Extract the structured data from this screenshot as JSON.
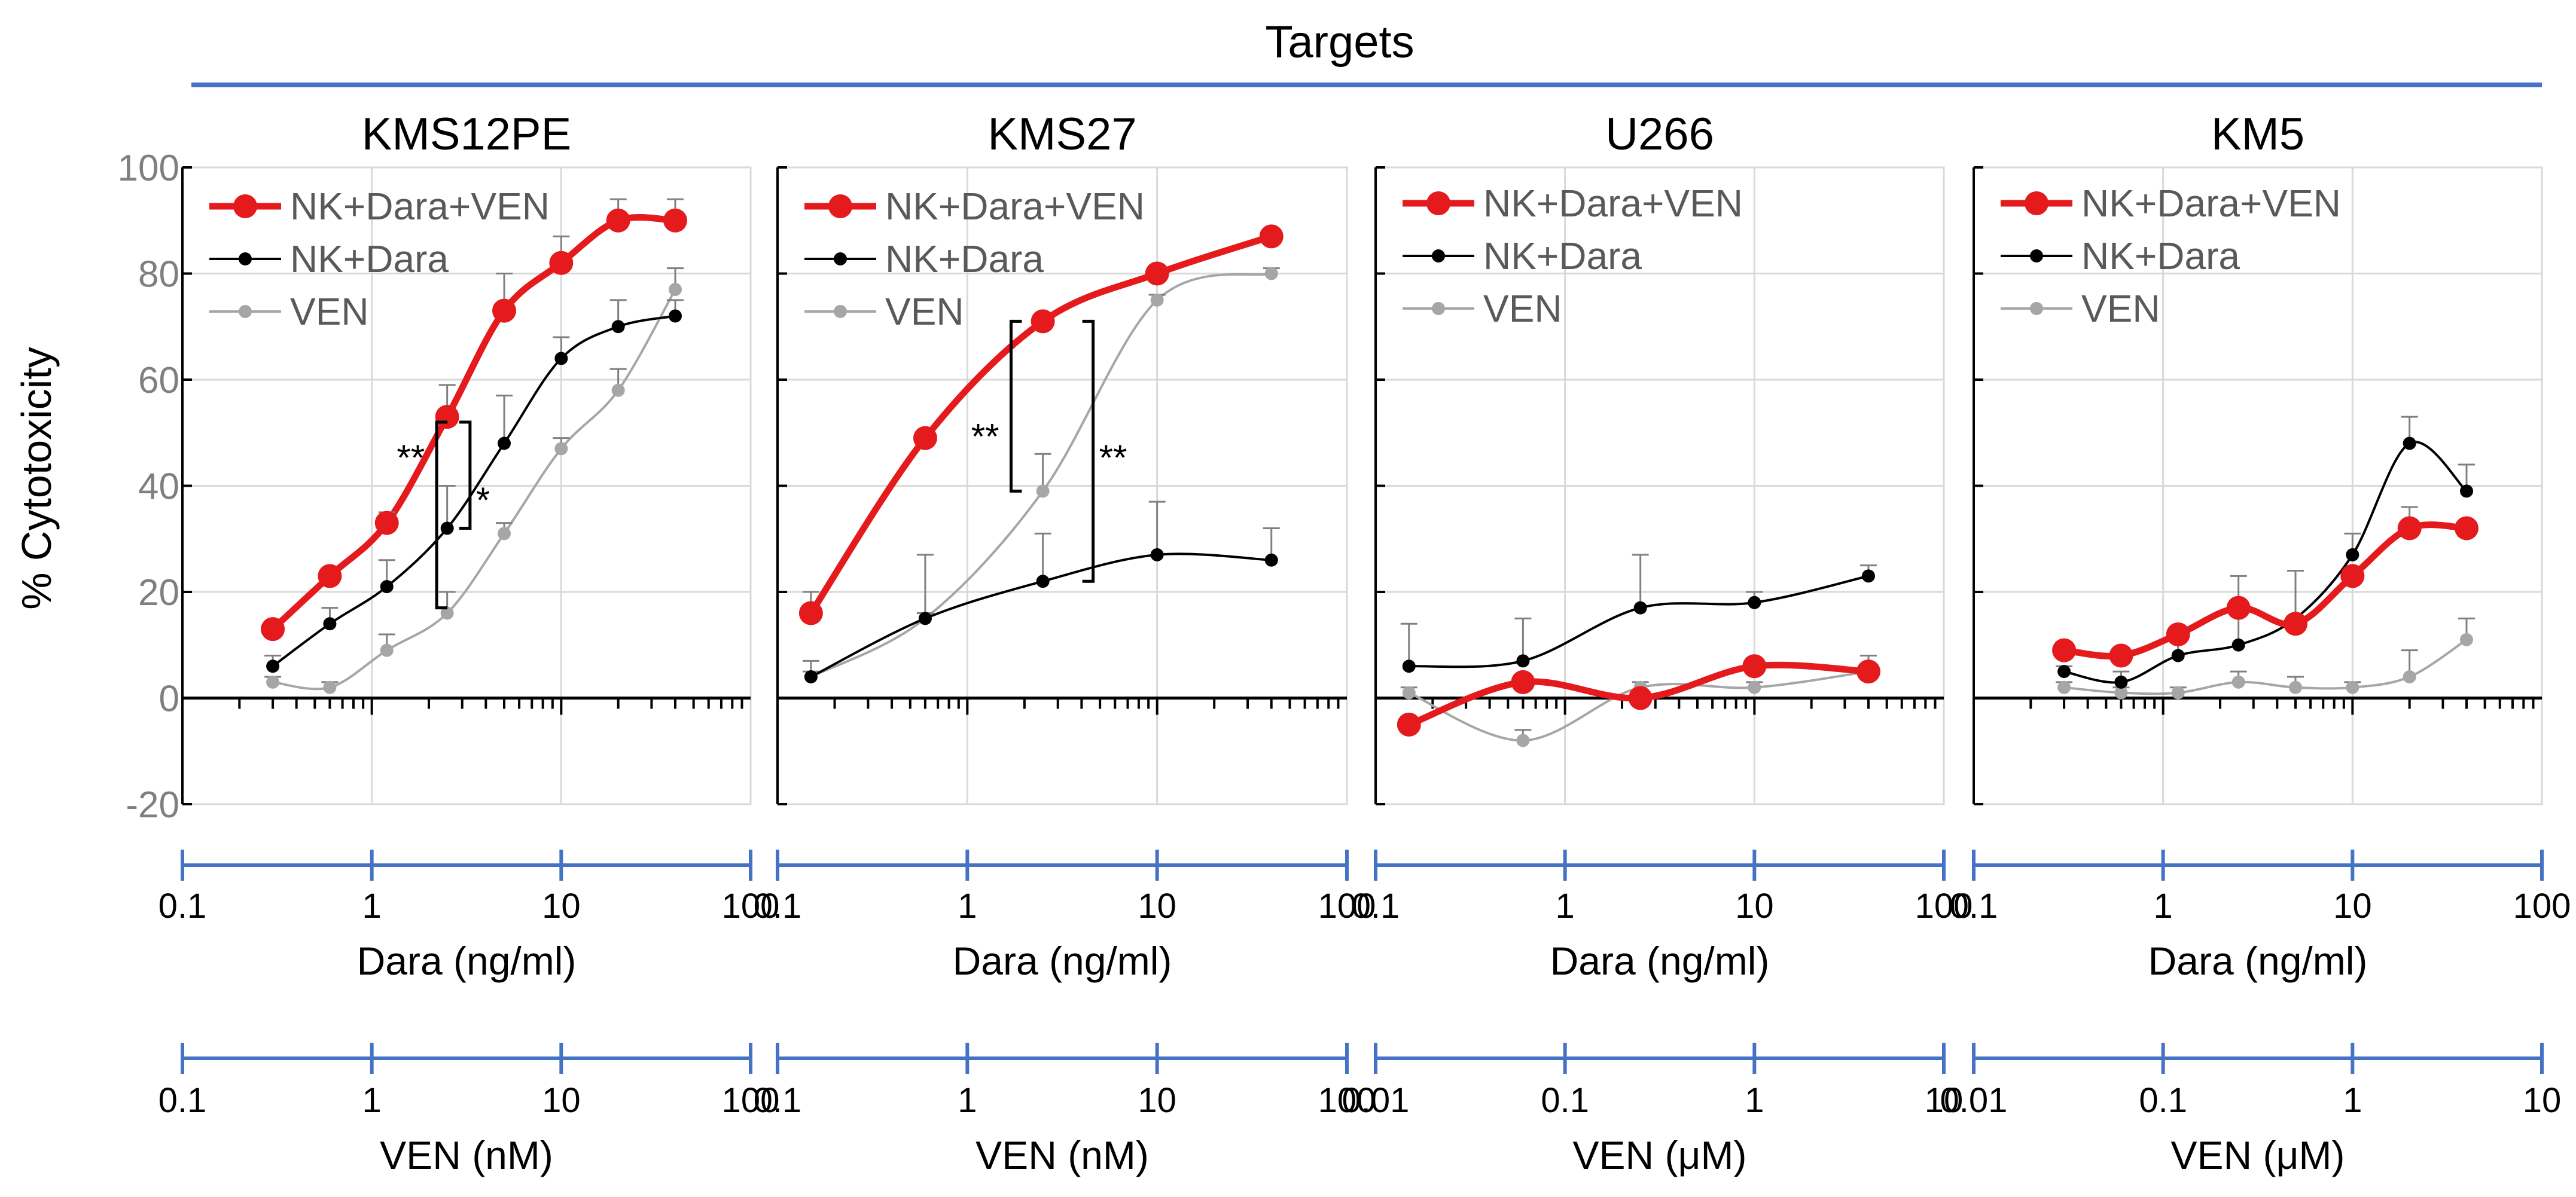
{
  "header": {
    "label": "Targets",
    "line_color": "#4472C4"
  },
  "yaxis": {
    "label": "% Cytotoxicity",
    "ticks": [
      "100",
      "80",
      "60",
      "40",
      "20",
      "0",
      "-20"
    ],
    "ylim": [
      -20,
      100
    ]
  },
  "colors": {
    "nk_dara_ven": "#E41A1C",
    "nk_dara": "#000000",
    "ven": "#A6A6A6",
    "axis_blue": "#4472C4",
    "grid": "#D9D9D9"
  },
  "chart_data": [
    {
      "type": "line",
      "title": "KMS12PE",
      "xscale": "log",
      "xlim": [
        0.1,
        100
      ],
      "ylim": [
        -20,
        100
      ],
      "grid": true,
      "legend_position": "top-left",
      "dara_axis": {
        "label": "Dara (ng/ml)",
        "ticks": [
          "0.1",
          "1",
          "10",
          "100"
        ]
      },
      "ven_axis": {
        "label": "VEN (nM)",
        "ticks": [
          "0.1",
          "1",
          "10",
          "100"
        ]
      },
      "series": [
        {
          "name": "NK+Dara+VEN",
          "points": [
            [
              0.3,
              13
            ],
            [
              0.6,
              23
            ],
            [
              1.2,
              33
            ],
            [
              2.5,
              53
            ],
            [
              5,
              73
            ],
            [
              10,
              82
            ],
            [
              20,
              90
            ],
            [
              40,
              90
            ]
          ],
          "err": [
            1,
            1,
            2,
            6,
            7,
            5,
            4,
            4
          ]
        },
        {
          "name": "NK+Dara",
          "points": [
            [
              0.3,
              6
            ],
            [
              0.6,
              14
            ],
            [
              1.2,
              21
            ],
            [
              2.5,
              32
            ],
            [
              5,
              48
            ],
            [
              10,
              64
            ],
            [
              20,
              70
            ],
            [
              40,
              72
            ]
          ],
          "err": [
            2,
            3,
            5,
            8,
            9,
            4,
            5,
            3
          ]
        },
        {
          "name": "VEN",
          "points": [
            [
              0.3,
              3
            ],
            [
              0.6,
              2
            ],
            [
              1.2,
              9
            ],
            [
              2.5,
              16
            ],
            [
              5,
              31
            ],
            [
              10,
              47
            ],
            [
              20,
              58
            ],
            [
              40,
              77
            ]
          ],
          "err": [
            1,
            1,
            3,
            4,
            2,
            2,
            4,
            4
          ]
        }
      ],
      "annotations": [
        "**",
        "*"
      ]
    },
    {
      "type": "line",
      "title": "KMS27",
      "xscale": "log",
      "xlim": [
        0.1,
        100
      ],
      "ylim": [
        -20,
        100
      ],
      "grid": true,
      "legend_position": "top-left",
      "dara_axis": {
        "label": "Dara (ng/ml)",
        "ticks": [
          "0.1",
          "1",
          "10",
          "100"
        ]
      },
      "ven_axis": {
        "label": "VEN (nM)",
        "ticks": [
          "0.1",
          "1",
          "10",
          "100"
        ]
      },
      "series": [
        {
          "name": "NK+Dara+VEN",
          "points": [
            [
              0.15,
              16
            ],
            [
              0.6,
              49
            ],
            [
              2.5,
              71
            ],
            [
              10,
              80
            ],
            [
              40,
              87
            ]
          ],
          "err": [
            4,
            0,
            0,
            0,
            0
          ]
        },
        {
          "name": "NK+Dara",
          "points": [
            [
              0.15,
              4
            ],
            [
              0.6,
              15
            ],
            [
              2.5,
              22
            ],
            [
              10,
              27
            ],
            [
              40,
              26
            ]
          ],
          "err": [
            3,
            12,
            9,
            10,
            6
          ]
        },
        {
          "name": "VEN",
          "points": [
            [
              0.15,
              4
            ],
            [
              0.6,
              15
            ],
            [
              2.5,
              39
            ],
            [
              10,
              75
            ],
            [
              40,
              80
            ]
          ],
          "err": [
            1,
            1,
            7,
            1,
            1
          ]
        }
      ],
      "annotations": [
        "**",
        "**"
      ]
    },
    {
      "type": "line",
      "title": "U266",
      "xscale": "log",
      "xlim": [
        0.1,
        100
      ],
      "ylim": [
        -20,
        100
      ],
      "grid": true,
      "legend_position": "top-left",
      "dara_axis": {
        "label": "Dara (ng/ml)",
        "ticks": [
          "0.1",
          "1",
          "10",
          "100"
        ]
      },
      "ven_axis": {
        "label": "VEN (μM)",
        "ticks": [
          "0.01",
          "0.1",
          "1",
          "10"
        ]
      },
      "series": [
        {
          "name": "NK+Dara+VEN",
          "points": [
            [
              0.15,
              -5
            ],
            [
              0.6,
              3
            ],
            [
              2.5,
              0
            ],
            [
              10,
              6
            ],
            [
              40,
              5
            ]
          ],
          "err": [
            0,
            0,
            0,
            0,
            0
          ]
        },
        {
          "name": "NK+Dara",
          "points": [
            [
              0.15,
              6
            ],
            [
              0.6,
              7
            ],
            [
              2.5,
              17
            ],
            [
              10,
              18
            ],
            [
              40,
              23
            ]
          ],
          "err": [
            8,
            8,
            10,
            2,
            2
          ]
        },
        {
          "name": "VEN",
          "points": [
            [
              0.15,
              1
            ],
            [
              0.6,
              -8
            ],
            [
              2.5,
              2
            ],
            [
              10,
              2
            ],
            [
              40,
              5
            ]
          ],
          "err": [
            1,
            2,
            1,
            1,
            3
          ]
        }
      ],
      "annotations": []
    },
    {
      "type": "line",
      "title": "KM5",
      "xscale": "log",
      "xlim": [
        0.1,
        100
      ],
      "ylim": [
        -20,
        100
      ],
      "grid": true,
      "legend_position": "top-left",
      "dara_axis": {
        "label": "Dara (ng/ml)",
        "ticks": [
          "0.1",
          "1",
          "10",
          "100"
        ]
      },
      "ven_axis": {
        "label": "VEN (μM)",
        "ticks": [
          "0.01",
          "0.1",
          "1",
          "10"
        ]
      },
      "series": [
        {
          "name": "NK+Dara+VEN",
          "points": [
            [
              0.3,
              9
            ],
            [
              0.6,
              8
            ],
            [
              1.2,
              12
            ],
            [
              2.5,
              17
            ],
            [
              5,
              14
            ],
            [
              10,
              23
            ],
            [
              20,
              32
            ],
            [
              40,
              32
            ]
          ],
          "err": [
            0,
            0,
            0,
            0,
            0,
            0,
            4,
            0
          ]
        },
        {
          "name": "NK+Dara",
          "points": [
            [
              0.3,
              5
            ],
            [
              0.6,
              3
            ],
            [
              1.2,
              8
            ],
            [
              2.5,
              10
            ],
            [
              5,
              15
            ],
            [
              10,
              27
            ],
            [
              20,
              48
            ],
            [
              40,
              39
            ]
          ],
          "err": [
            1,
            2,
            3,
            13,
            9,
            4,
            5,
            5
          ]
        },
        {
          "name": "VEN",
          "points": [
            [
              0.3,
              2
            ],
            [
              0.6,
              1
            ],
            [
              1.2,
              1
            ],
            [
              2.5,
              3
            ],
            [
              5,
              2
            ],
            [
              10,
              2
            ],
            [
              20,
              4
            ],
            [
              40,
              11
            ]
          ],
          "err": [
            1,
            1,
            1,
            2,
            2,
            1,
            5,
            4
          ]
        }
      ],
      "annotations": []
    }
  ]
}
